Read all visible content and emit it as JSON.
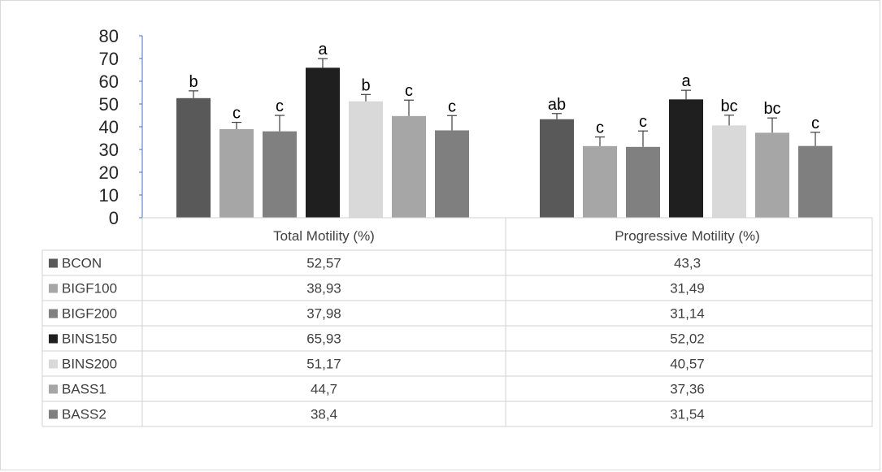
{
  "chart_data": {
    "type": "bar",
    "categories": [
      "Total Motility (%)",
      "Progressive Motility (%)"
    ],
    "series": [
      {
        "name": "BCON",
        "color": "#595959",
        "values": [
          52.57,
          43.3
        ],
        "value_labels": [
          "52,57",
          "43,3"
        ],
        "errors": [
          3.2,
          2.5
        ],
        "letters": [
          "b",
          "ab"
        ]
      },
      {
        "name": "BIGF100",
        "color": "#a6a6a6",
        "values": [
          38.93,
          31.49
        ],
        "value_labels": [
          "38,93",
          "31,49"
        ],
        "errors": [
          3.0,
          4.0
        ],
        "letters": [
          "c",
          "c"
        ]
      },
      {
        "name": "BIGF200",
        "color": "#808080",
        "values": [
          37.98,
          31.14
        ],
        "value_labels": [
          "37,98",
          "31,14"
        ],
        "errors": [
          7.0,
          7.0
        ],
        "letters": [
          "c",
          "c"
        ]
      },
      {
        "name": "BINS150",
        "color": "#1f1f1f",
        "values": [
          65.93,
          52.02
        ],
        "value_labels": [
          "65,93",
          "52,02"
        ],
        "errors": [
          4.0,
          4.0
        ],
        "letters": [
          "a",
          "a"
        ]
      },
      {
        "name": "BINS200",
        "color": "#d9d9d9",
        "values": [
          51.17,
          40.57
        ],
        "value_labels": [
          "51,17",
          "40,57"
        ],
        "errors": [
          3.0,
          4.5
        ],
        "letters": [
          "b",
          "bc"
        ]
      },
      {
        "name": "BASS1",
        "color": "#a6a6a6",
        "values": [
          44.7,
          37.36
        ],
        "value_labels": [
          "44,7",
          "37,36"
        ],
        "errors": [
          7.0,
          6.5
        ],
        "letters": [
          "c",
          "bc"
        ]
      },
      {
        "name": "BASS2",
        "color": "#7f7f7f",
        "values": [
          38.4,
          31.54
        ],
        "value_labels": [
          "38,4",
          "31,54"
        ],
        "errors": [
          6.5,
          6.0
        ],
        "letters": [
          "c",
          "c"
        ]
      }
    ],
    "y_ticks": [
      "0",
      "10",
      "20",
      "30",
      "40",
      "50",
      "60",
      "70",
      "80"
    ],
    "ylim": [
      0,
      80
    ],
    "legend": "data-table-below",
    "grid": false
  }
}
